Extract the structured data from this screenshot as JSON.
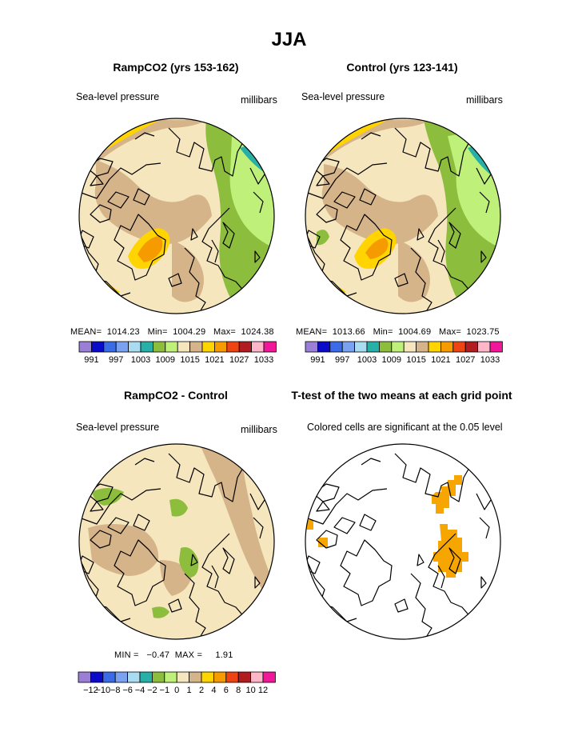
{
  "figure": {
    "title": "JJA"
  },
  "palette": {
    "absolute": [
      "#9b7fd6",
      "#0a0ac8",
      "#3c6be6",
      "#7aa2f0",
      "#a9dcf0",
      "#26b0a8",
      "#8cbd3c",
      "#bff07a",
      "#f5e6bd",
      "#d6b48a",
      "#ffd400",
      "#f59b00",
      "#ee4414",
      "#b01c20",
      "#ffb6c8",
      "#f01898"
    ],
    "difference": [
      "#9b7fd6",
      "#0a0ac8",
      "#3c6be6",
      "#7aa2f0",
      "#a9dcf0",
      "#26b0a8",
      "#8cbd3c",
      "#bff07a",
      "#f5e6bd",
      "#d6b48a",
      "#ffd400",
      "#f59b00",
      "#ee4414",
      "#b01c20",
      "#ffb6c8",
      "#f01898"
    ],
    "significance": "#f7a500"
  },
  "chart_data": [
    {
      "type": "heatmap",
      "title": "RampCO2 (yrs 153-162)",
      "subtitle": "Sea-level pressure",
      "units": "millibars",
      "stats": {
        "mean": "1014.23",
        "min": "1004.29",
        "max": "1024.38"
      },
      "stats_text": "MEAN=  1014.23   Min=  1004.29   Max=  1024.38",
      "colorbar_labels": [
        "991",
        "997",
        "1003",
        "1009",
        "1015",
        "1021",
        "1027",
        "1033"
      ]
    },
    {
      "type": "heatmap",
      "title": "Control (yrs 123-141)",
      "subtitle": "Sea-level pressure",
      "units": "millibars",
      "stats": {
        "mean": "1013.66",
        "min": "1004.69",
        "max": "1023.75"
      },
      "stats_text": "MEAN=  1013.66   Min=  1004.69   Max=  1023.75",
      "colorbar_labels": [
        "991",
        "997",
        "1003",
        "1009",
        "1015",
        "1021",
        "1027",
        "1033"
      ]
    },
    {
      "type": "heatmap",
      "title": "RampCO2 - Control",
      "subtitle": "Sea-level pressure",
      "units": "millibars",
      "stats": {
        "min": "-0.47",
        "max": "1.91"
      },
      "stats_text": "MIN =   −0.47  MAX =     1.91",
      "colorbar_labels": [
        "−12",
        "−10",
        "−8",
        "−6",
        "−4",
        "−2",
        "−1",
        "0",
        "1",
        "2",
        "4",
        "6",
        "8",
        "10",
        "12"
      ]
    },
    {
      "type": "heatmap",
      "title": "T-test of the two means at each grid point",
      "subtitle": "Colored cells are significant at the 0.05 level"
    }
  ]
}
